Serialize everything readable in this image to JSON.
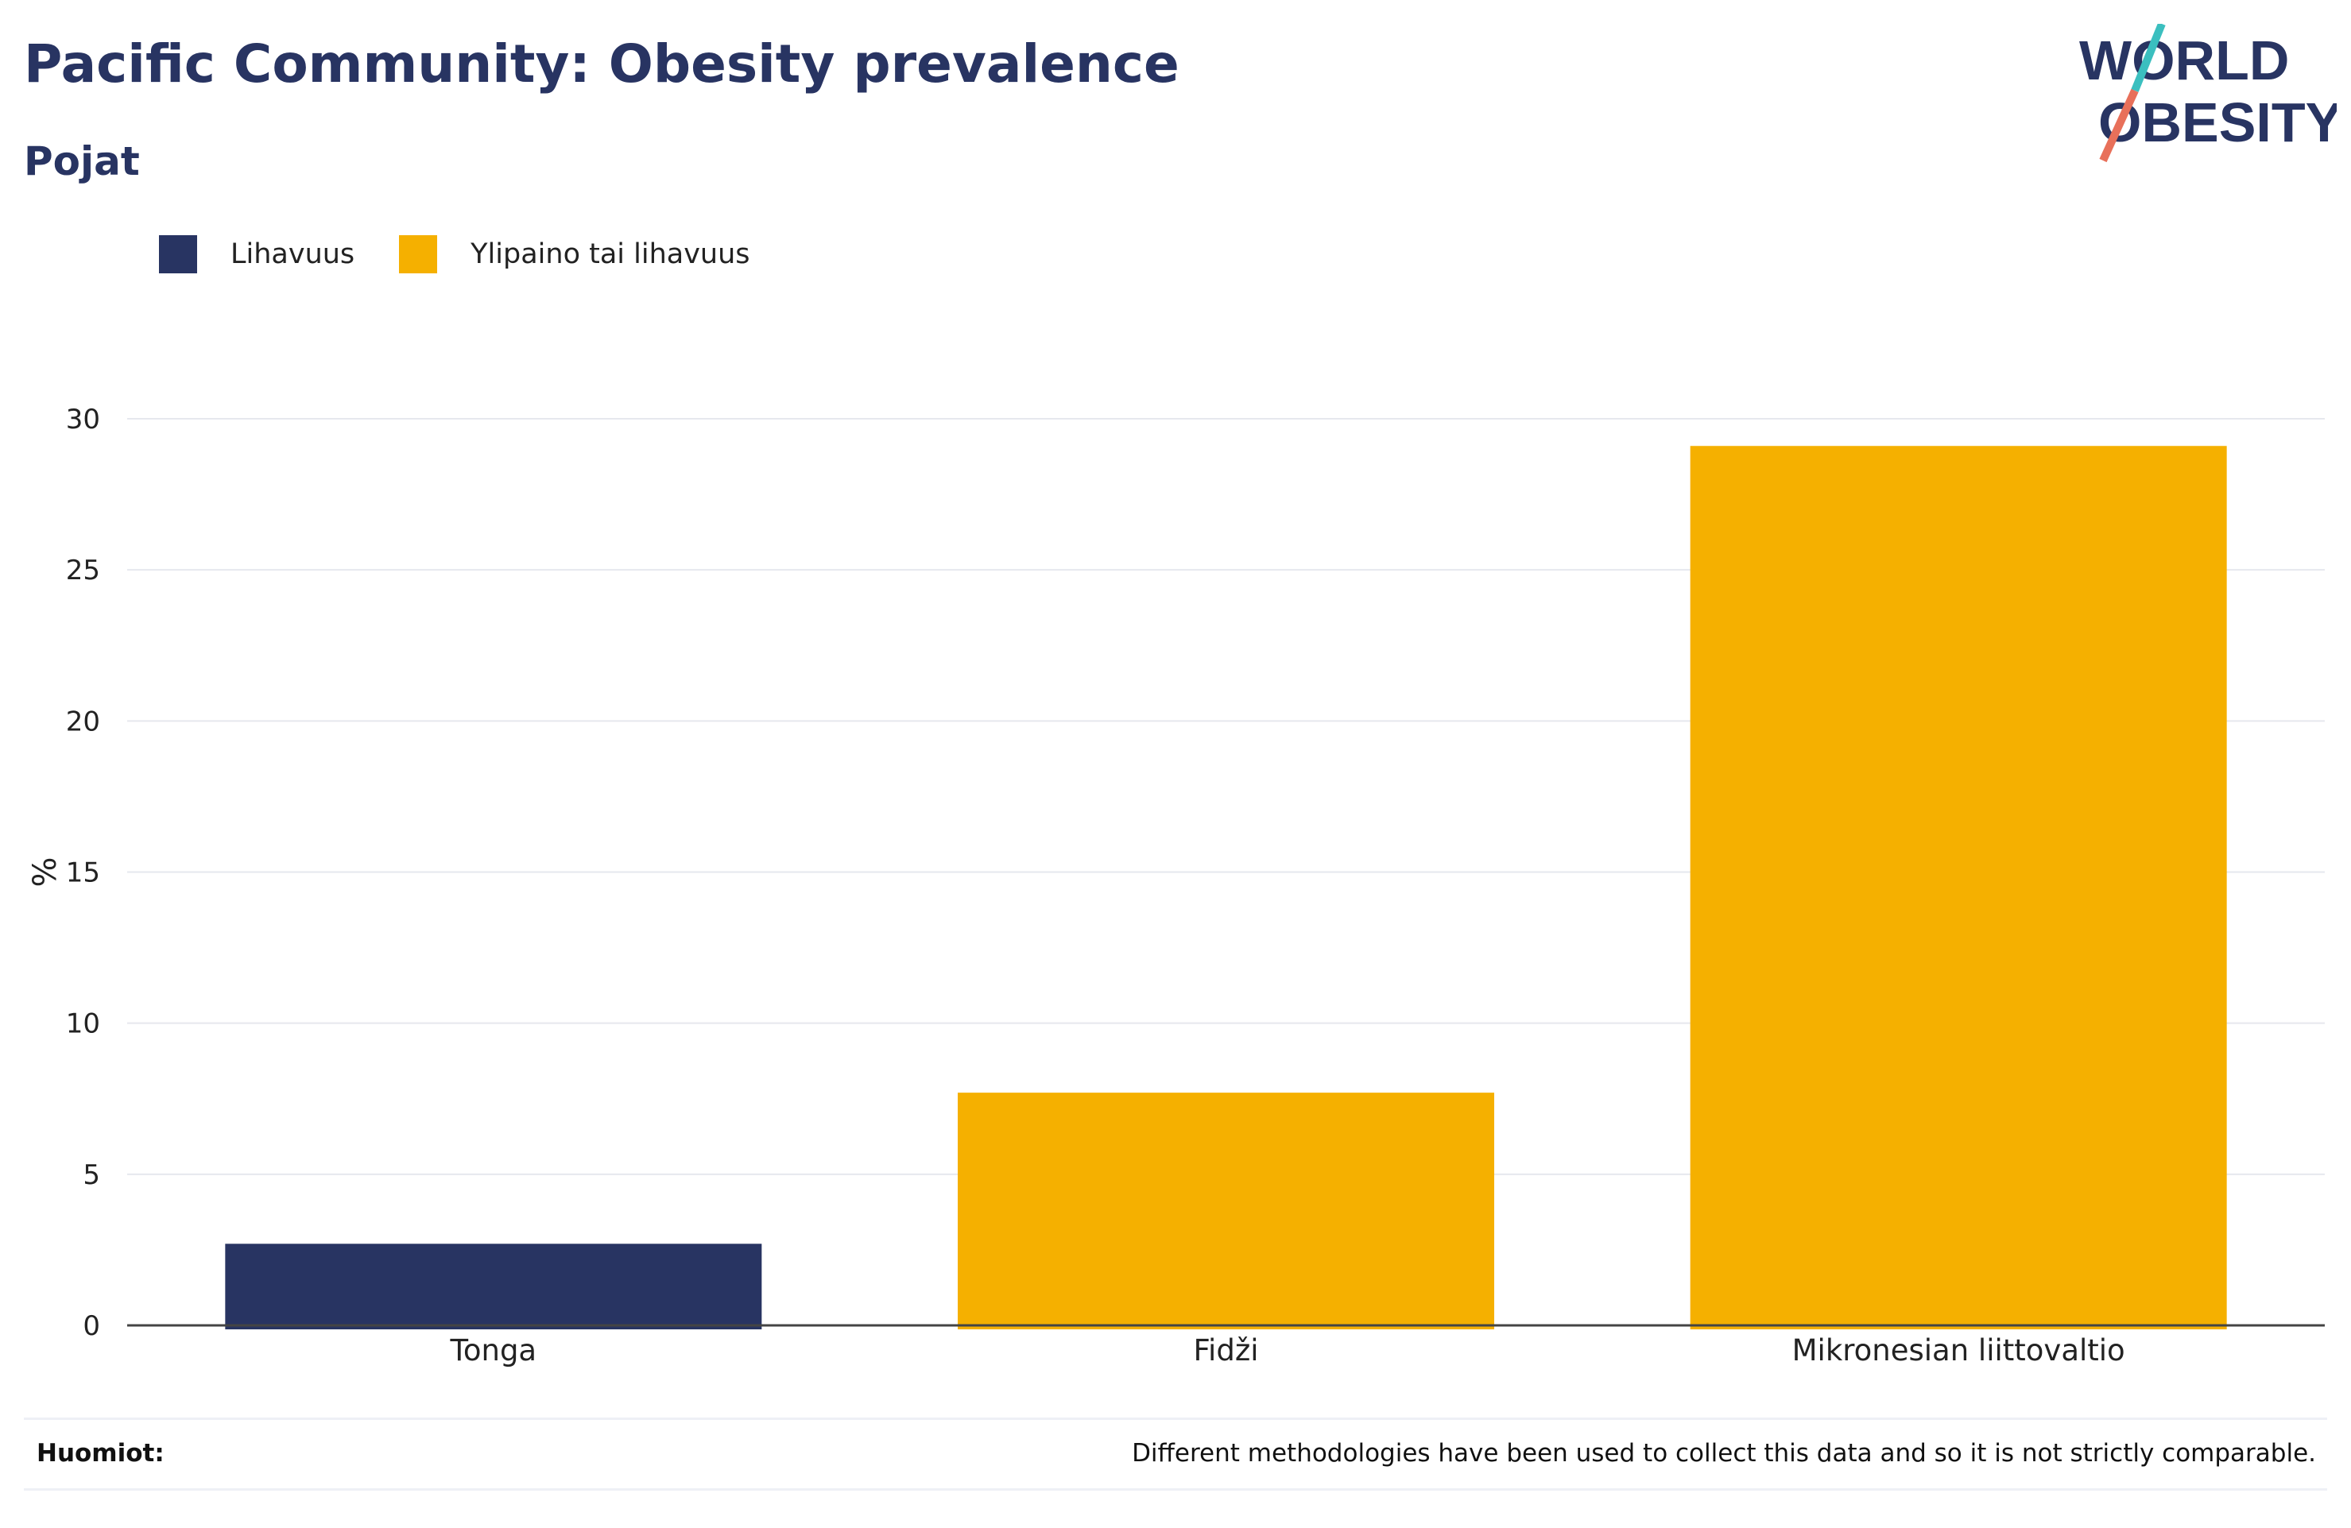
{
  "title": "Pacific Community: Obesity prevalence",
  "subtitle": "Pojat",
  "logo": {
    "line1": "WORLD",
    "line2": "OBESITY",
    "text_color": "#283462",
    "slash_top_color": "#3bbfbf",
    "slash_bottom_color": "#e8705a"
  },
  "legend": [
    {
      "label": "Lihavuus",
      "color": "#283462"
    },
    {
      "label": "Ylipaino tai lihavuus",
      "color": "#f5b000"
    }
  ],
  "chart_data": {
    "type": "bar",
    "categories": [
      "Tonga",
      "Fidži",
      "Mikronesian liittovaltio"
    ],
    "values": [
      2.7,
      7.7,
      29.1
    ],
    "series_of_bar": [
      "Lihavuus",
      "Ylipaino tai lihavuus",
      "Ylipaino tai lihavuus"
    ],
    "ylabel": "%",
    "xlabel": "",
    "ylim": [
      0,
      30
    ],
    "yticks": [
      0,
      5,
      10,
      15,
      20,
      25,
      30
    ],
    "grid": true,
    "legend_position": "top-left"
  },
  "notes": {
    "label": "Huomiot:",
    "text": "Different methodologies have been used to collect this data and so it is not strictly comparable."
  }
}
